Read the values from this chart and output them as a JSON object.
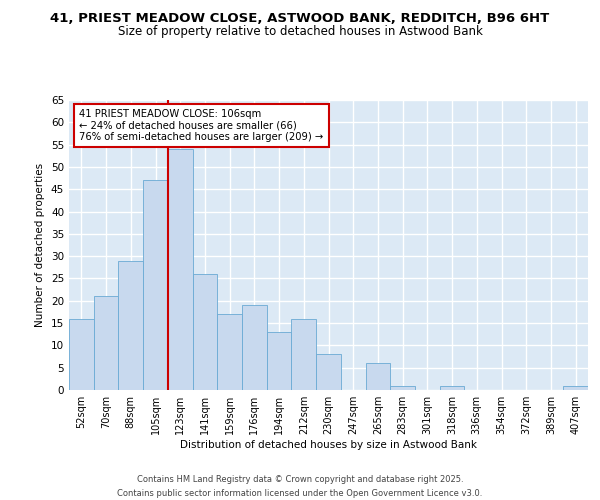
{
  "title1": "41, PRIEST MEADOW CLOSE, ASTWOOD BANK, REDDITCH, B96 6HT",
  "title2": "Size of property relative to detached houses in Astwood Bank",
  "xlabel": "Distribution of detached houses by size in Astwood Bank",
  "ylabel": "Number of detached properties",
  "categories": [
    "52sqm",
    "70sqm",
    "88sqm",
    "105sqm",
    "123sqm",
    "141sqm",
    "159sqm",
    "176sqm",
    "194sqm",
    "212sqm",
    "230sqm",
    "247sqm",
    "265sqm",
    "283sqm",
    "301sqm",
    "318sqm",
    "336sqm",
    "354sqm",
    "372sqm",
    "389sqm",
    "407sqm"
  ],
  "values": [
    16,
    21,
    29,
    47,
    54,
    26,
    17,
    19,
    13,
    16,
    8,
    0,
    6,
    1,
    0,
    1,
    0,
    0,
    0,
    0,
    1
  ],
  "bar_color": "#c8d9ee",
  "bar_edge_color": "#6aaad4",
  "property_line_x": 3.5,
  "annotation_text": "41 PRIEST MEADOW CLOSE: 106sqm\n← 24% of detached houses are smaller (66)\n76% of semi-detached houses are larger (209) →",
  "annotation_box_color": "#ffffff",
  "annotation_box_edge_color": "#cc0000",
  "line_color": "#cc0000",
  "ylim": [
    0,
    65
  ],
  "yticks": [
    0,
    5,
    10,
    15,
    20,
    25,
    30,
    35,
    40,
    45,
    50,
    55,
    60,
    65
  ],
  "footer": "Contains HM Land Registry data © Crown copyright and database right 2025.\nContains public sector information licensed under the Open Government Licence v3.0.",
  "bg_color": "#dce9f5",
  "fig_color": "#ffffff",
  "grid_color": "#ffffff",
  "title1_fontsize": 9.5,
  "title2_fontsize": 8.5
}
